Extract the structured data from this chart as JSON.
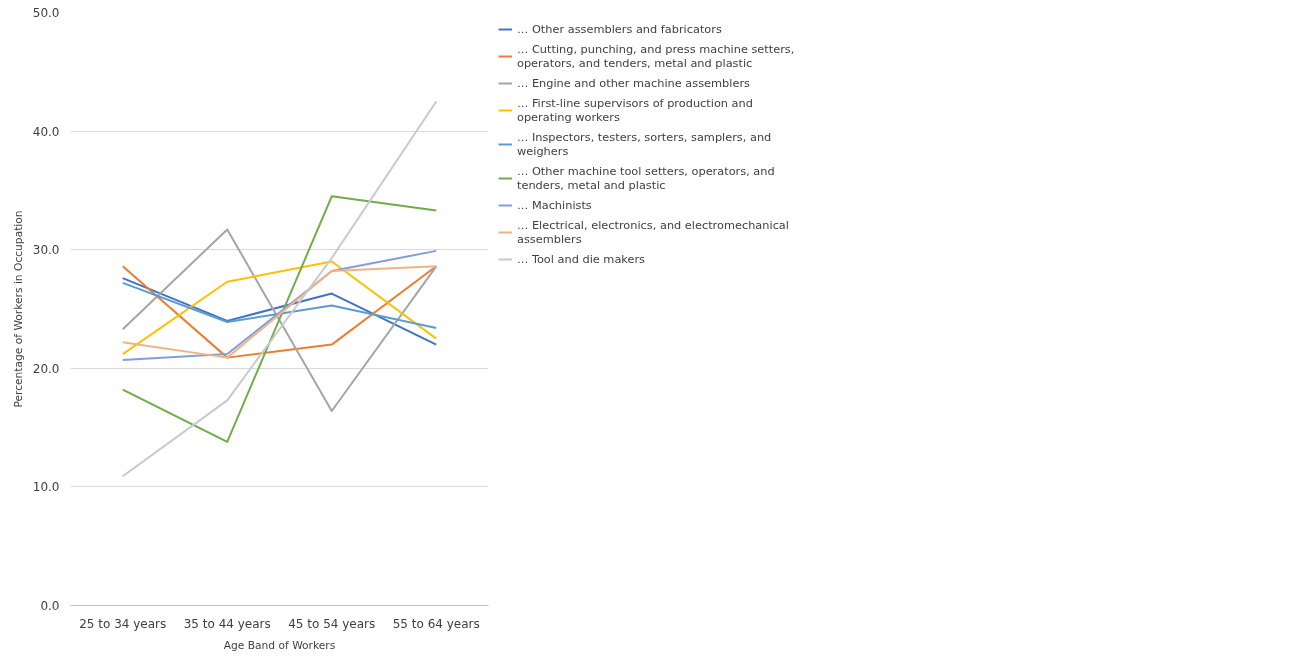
{
  "chart_data": {
    "type": "line",
    "xlabel": "Age Band of Workers",
    "ylabel": "Percentage of Workers in Occupation",
    "categories": [
      "25 to 34 years",
      "35 to 44 years",
      "45 to 54 years",
      "55 to 64 years"
    ],
    "ylim": [
      0,
      50
    ],
    "yticks": [
      {
        "value": 0,
        "label": "0.0"
      },
      {
        "value": 10,
        "label": "10.0"
      },
      {
        "value": 20,
        "label": "20.0"
      },
      {
        "value": 30,
        "label": "30.0"
      },
      {
        "value": 40,
        "label": "40.0"
      },
      {
        "value": 50,
        "label": "50.0"
      }
    ],
    "grid": "y",
    "legend": "right",
    "marker": "none",
    "line_style": "solid",
    "series": [
      {
        "name": "… Other assemblers and fabricators",
        "color": "#4472c4",
        "values": [
          27.6,
          24.0,
          26.3,
          22.0
        ]
      },
      {
        "name": "… Cutting, punching, and press machine setters, operators, and tenders, metal and plastic",
        "color": "#ed7d31",
        "values": [
          28.6,
          20.9,
          22.0,
          28.6
        ]
      },
      {
        "name": "… Engine and other machine assemblers",
        "color": "#a5a5a5",
        "values": [
          23.3,
          31.7,
          16.4,
          28.6
        ]
      },
      {
        "name": "… First-line supervisors of production and operating workers",
        "color": "#ffc000",
        "values": [
          21.2,
          27.3,
          29.0,
          22.5
        ]
      },
      {
        "name": "… Inspectors, testers, sorters, samplers, and weighers",
        "color": "#5b9bd5",
        "values": [
          27.2,
          23.9,
          25.3,
          23.4
        ]
      },
      {
        "name": "… Other machine tool setters, operators, and tenders, metal and plastic",
        "color": "#70ad47",
        "values": [
          18.2,
          13.8,
          34.5,
          33.3
        ]
      },
      {
        "name": "… Machinists",
        "color": "#7f9fdb",
        "values": [
          20.7,
          21.2,
          28.2,
          29.9
        ]
      },
      {
        "name": "… Electrical, electronics, and electromechanical assemblers",
        "color": "#f4b183",
        "values": [
          22.2,
          20.9,
          28.2,
          28.6
        ]
      },
      {
        "name": "… Tool and die makers",
        "color": "#c9c9c9",
        "values": [
          10.9,
          17.3,
          29.3,
          42.5
        ]
      }
    ]
  }
}
